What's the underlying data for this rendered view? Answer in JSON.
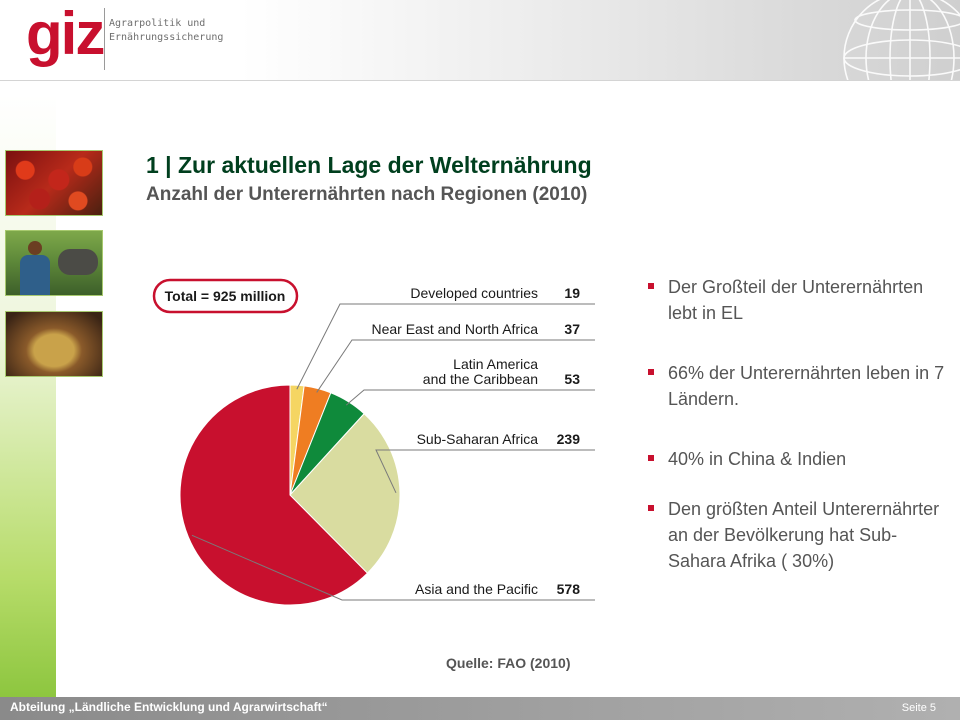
{
  "header": {
    "logo_text": "giz",
    "logo_sub_line1": "Agrarpolitik und",
    "logo_sub_line2": "Ernährungssicherung"
  },
  "slide": {
    "title": "1 | Zur aktuellen Lage der Welternährung",
    "subtitle": "Anzahl der Unterernährten nach Regionen (2010)",
    "source": "Quelle: FAO (2010)"
  },
  "bullets": [
    "Der Großteil der Unterernährten lebt in EL",
    "66% der Unterernährten leben in 7 Ländern.",
    "40% in China & Indien",
    "Den größten Anteil Unterernährter an der Bevölkerung hat Sub-Sahara Afrika ( 30%)"
  ],
  "footer": {
    "department": "Abteilung „Ländliche Entwicklung und Agrarwirtschaft“",
    "page": "Seite 5"
  },
  "chart_data": {
    "type": "pie",
    "total_label": "Total = 925 million",
    "unit": "million",
    "slices": [
      {
        "label": "Developed countries",
        "label_lines": [
          "Developed countries"
        ],
        "value": 19,
        "color": "#f5d562"
      },
      {
        "label": "Near East and North Africa",
        "label_lines": [
          "Near East and North Africa"
        ],
        "value": 37,
        "color": "#ef7d22"
      },
      {
        "label": "Latin America and the Caribbean",
        "label_lines": [
          "Latin America",
          "and the Caribbean"
        ],
        "value": 53,
        "color": "#0f8a3b"
      },
      {
        "label": "Sub-Saharan Africa",
        "label_lines": [
          "Sub-Saharan Africa"
        ],
        "value": 239,
        "color": "#d9dca0"
      },
      {
        "label": "Asia and the Pacific",
        "label_lines": [
          "Asia and the Pacific"
        ],
        "value": 578,
        "color": "#c8102e"
      }
    ],
    "legend_placement": "right",
    "total_badge_color": "#c8102e"
  }
}
